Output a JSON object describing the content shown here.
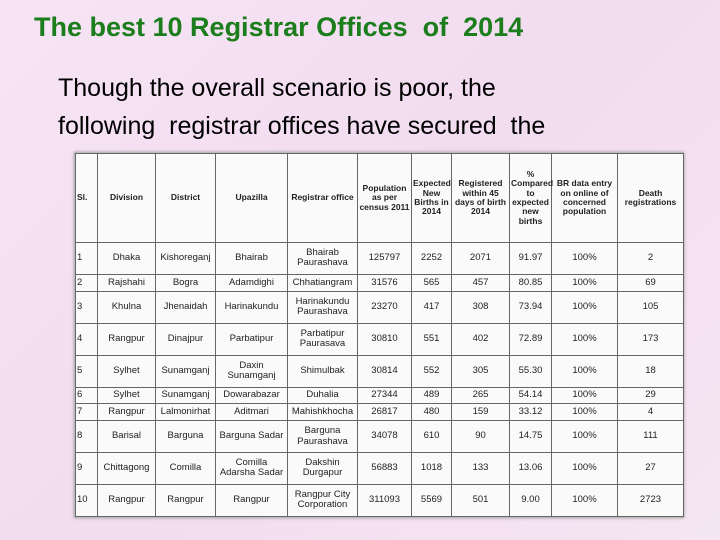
{
  "header": {
    "title": "The best 10 Registrar Offices  of  2014"
  },
  "body": {
    "lines": [
      "Though the overall scenario is poor, the",
      "following  registrar offices have secured  the"
    ]
  },
  "table": {
    "header": [
      "Sl.",
      "Division",
      "District",
      "Upazilla",
      "Registrar office",
      "Population as per census 2011",
      "Expected New Births in 2014",
      "Registered within 45 days of birth 2014",
      "% Compared to expected new births",
      "BR data entry on online of concerned population",
      "Death registrations"
    ],
    "rows": [
      [
        "1",
        "Dhaka",
        "Kishoreganj",
        "Bhairab",
        "Bhairab Paurashava",
        "125797",
        "2252",
        "2071",
        "91.97",
        "100%",
        "2"
      ],
      [
        "2",
        "Rajshahi",
        "Bogra",
        "Adamdighi",
        "Chhatiangram",
        "31576",
        "565",
        "457",
        "80.85",
        "100%",
        "69"
      ],
      [
        "3",
        "Khulna",
        "Jhenaidah",
        "Harinakundu",
        "Harinakundu Paurashava",
        "23270",
        "417",
        "308",
        "73.94",
        "100%",
        "105"
      ],
      [
        "4",
        "Rangpur",
        "Dinajpur",
        "Parbatipur",
        "Parbatipur Paurasava",
        "30810",
        "551",
        "402",
        "72.89",
        "100%",
        "173"
      ],
      [
        "5",
        "Sylhet",
        "Sunamganj",
        "Daxin Sunamganj",
        "Shimulbak",
        "30814",
        "552",
        "305",
        "55.30",
        "100%",
        "18"
      ],
      [
        "6",
        "Sylhet",
        "Sunamganj",
        "Dowarabazar",
        "Duhalia",
        "27344",
        "489",
        "265",
        "54.14",
        "100%",
        "29"
      ],
      [
        "7",
        "Rangpur",
        "Lalmonirhat",
        "Aditmari",
        "Mahishkhocha",
        "26817",
        "480",
        "159",
        "33.12",
        "100%",
        "4"
      ],
      [
        "8",
        "Barisal",
        "Barguna",
        "Barguna Sadar",
        "Barguna Paurashava",
        "34078",
        "610",
        "90",
        "14.75",
        "100%",
        "111"
      ],
      [
        "9",
        "Chittagong",
        "Comilla",
        "Comilla Adarsha Sadar",
        "Dakshin Durgapur",
        "56883",
        "1018",
        "133",
        "13.06",
        "100%",
        "27"
      ],
      [
        "10",
        "Rangpur",
        "Rangpur",
        "Rangpur",
        "Rangpur City Corporation",
        "311093",
        "5569",
        "501",
        "9.00",
        "100%",
        "2723"
      ]
    ]
  }
}
